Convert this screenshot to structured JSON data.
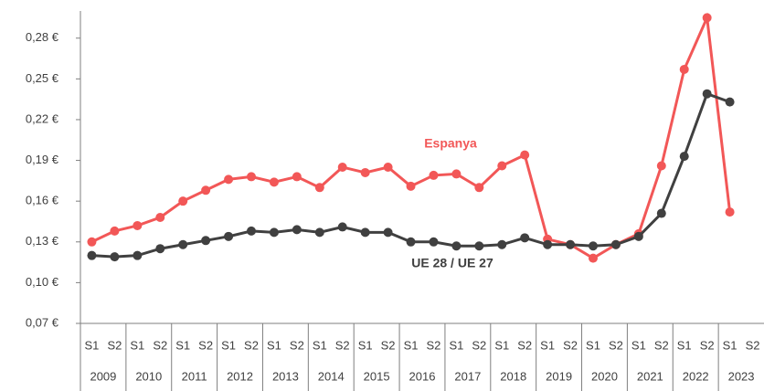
{
  "chart_data": {
    "type": "line",
    "categories": [
      "S1",
      "S2",
      "S1",
      "S2",
      "S1",
      "S2",
      "S1",
      "S2",
      "S1",
      "S2",
      "S1",
      "S2",
      "S1",
      "S2",
      "S1",
      "S2",
      "S1",
      "S2",
      "S1",
      "S2",
      "S1",
      "S2",
      "S1",
      "S2",
      "S1",
      "S2",
      "S1",
      "S2",
      "S1",
      "S2"
    ],
    "years": [
      "2009",
      "2010",
      "2011",
      "2012",
      "2013",
      "2014",
      "2015",
      "2016",
      "2017",
      "2018",
      "2019",
      "2020",
      "2021",
      "2022",
      "2023"
    ],
    "series": [
      {
        "name": "Espanya",
        "color": "#f25757",
        "values": [
          0.13,
          0.138,
          0.142,
          0.148,
          0.16,
          0.168,
          0.176,
          0.178,
          0.174,
          0.178,
          0.17,
          0.185,
          0.181,
          0.185,
          0.171,
          0.179,
          0.18,
          0.17,
          0.186,
          0.194,
          0.132,
          0.128,
          0.118,
          0.128,
          0.136,
          0.186,
          0.257,
          0.295,
          0.152,
          null
        ]
      },
      {
        "name": "UE 28 / UE 27",
        "color": "#404040",
        "values": [
          0.12,
          0.119,
          0.12,
          0.125,
          0.128,
          0.131,
          0.134,
          0.138,
          0.137,
          0.139,
          0.137,
          0.141,
          0.137,
          0.137,
          0.13,
          0.13,
          0.127,
          0.127,
          0.128,
          0.133,
          0.128,
          0.128,
          0.127,
          0.128,
          0.134,
          0.151,
          0.193,
          0.239,
          0.233,
          null
        ]
      }
    ],
    "ylim": [
      0.07,
      0.3
    ],
    "yticks": [
      {
        "value": 0.07,
        "label": "0,07 €"
      },
      {
        "value": 0.1,
        "label": "0,10 €"
      },
      {
        "value": 0.13,
        "label": "0,13 €"
      },
      {
        "value": 0.16,
        "label": "0,16 €"
      },
      {
        "value": 0.19,
        "label": "0,19 €"
      },
      {
        "value": 0.22,
        "label": "0,22 €"
      },
      {
        "value": 0.25,
        "label": "0,25 €"
      },
      {
        "value": 0.28,
        "label": "0,28 €"
      }
    ]
  }
}
